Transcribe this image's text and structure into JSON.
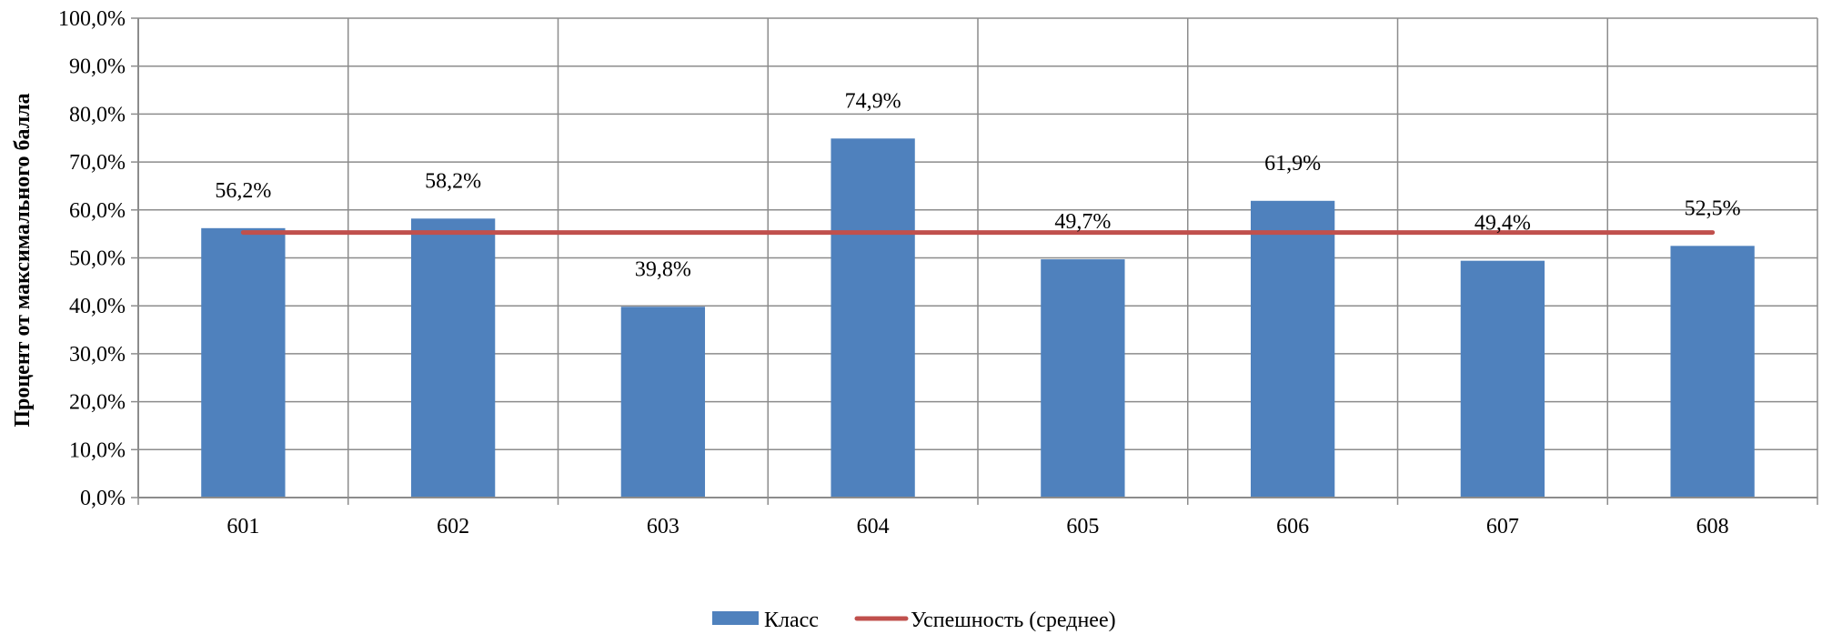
{
  "chart_data": {
    "type": "bar",
    "categories": [
      "601",
      "602",
      "603",
      "604",
      "605",
      "606",
      "607",
      "608"
    ],
    "series": [
      {
        "name": "Класс",
        "type": "bar",
        "color": "#4f81bd",
        "values": [
          56.2,
          58.2,
          39.8,
          74.9,
          49.7,
          61.9,
          49.4,
          52.5
        ],
        "labels": [
          "56,2%",
          "58,2%",
          "39,8%",
          "74,9%",
          "49,7%",
          "61,9%",
          "49,4%",
          "52,5%"
        ]
      },
      {
        "name": "Успешность (среднее)",
        "type": "line",
        "color": "#c0504d",
        "values": [
          55.3,
          55.3,
          55.3,
          55.3,
          55.3,
          55.3,
          55.3,
          55.3
        ]
      }
    ],
    "title": "",
    "xlabel": "",
    "ylabel": "Процент от максимального балла",
    "ylim": [
      0,
      100
    ],
    "yticks": [
      0,
      10,
      20,
      30,
      40,
      50,
      60,
      70,
      80,
      90,
      100
    ],
    "ytick_labels": [
      "0,0%",
      "10,0%",
      "20,0%",
      "30,0%",
      "40,0%",
      "50,0%",
      "60,0%",
      "70,0%",
      "80,0%",
      "90,0%",
      "100,0%"
    ],
    "grid": true,
    "legend_position": "bottom-center"
  }
}
